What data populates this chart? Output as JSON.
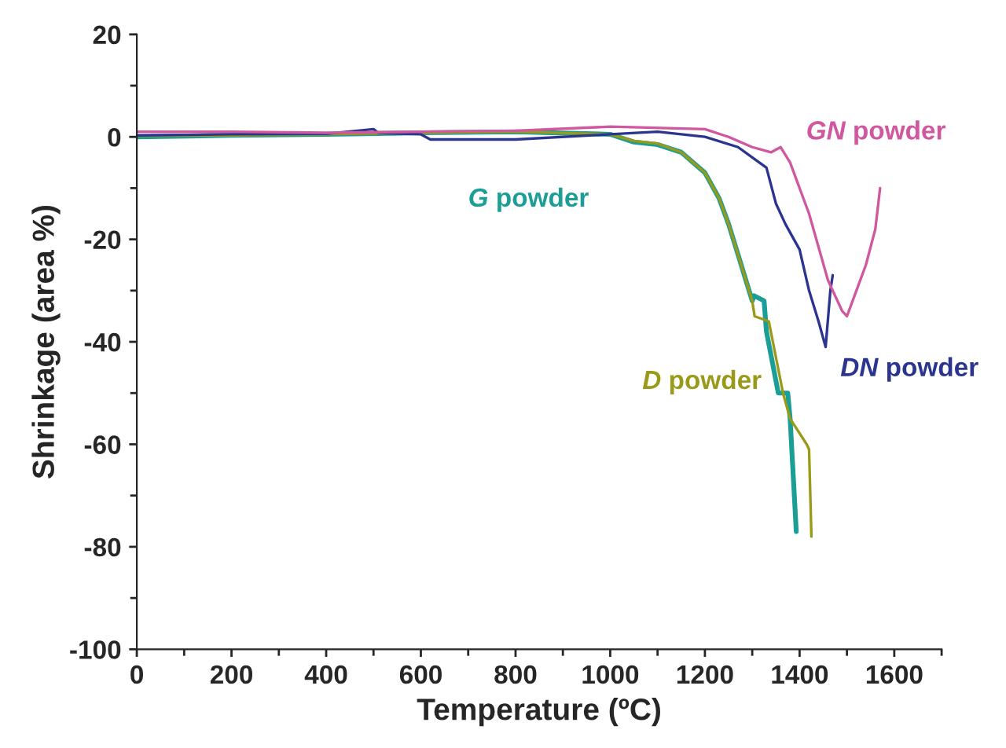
{
  "chart_data": {
    "type": "line",
    "xlabel": "Temperature (ºC)",
    "ylabel": "Shrinkage (area %)",
    "xlim": [
      0,
      1700
    ],
    "xticks": [
      0,
      200,
      400,
      600,
      800,
      1000,
      1200,
      1400,
      1600
    ],
    "ylim": [
      -100,
      20
    ],
    "yticks": [
      -100,
      -80,
      -60,
      -40,
      -20,
      0,
      20
    ],
    "grid": false,
    "legend": false,
    "marker": "none",
    "line_style": "solid",
    "series": [
      {
        "name": "G powder",
        "color": "#1a9e96",
        "x": [
          0,
          200,
          400,
          600,
          800,
          1000,
          1050,
          1100,
          1150,
          1200,
          1230,
          1250,
          1270,
          1290,
          1300,
          1304,
          1325,
          1330,
          1355,
          1375,
          1380,
          1393
        ],
        "values": [
          0,
          0.3,
          0.5,
          0.8,
          1,
          0.5,
          -1,
          -1.5,
          -3,
          -7,
          -12,
          -17,
          -23,
          -29,
          -32,
          -31,
          -32,
          -38,
          -50,
          -50,
          -55,
          -77
        ]
      },
      {
        "name": "D powder",
        "color": "#9a9a1a",
        "x": [
          0,
          200,
          400,
          600,
          800,
          1000,
          1050,
          1100,
          1150,
          1200,
          1230,
          1250,
          1270,
          1290,
          1300,
          1305,
          1335,
          1365,
          1380,
          1415,
          1420,
          1425
        ],
        "values": [
          0.2,
          0.3,
          0.5,
          0.8,
          1,
          0.5,
          -0.8,
          -1.3,
          -3,
          -7,
          -12,
          -17,
          -23,
          -29,
          -32,
          -35,
          -36,
          -50,
          -55,
          -60,
          -61,
          -78
        ]
      },
      {
        "name": "DN powder",
        "color": "#2b3590",
        "x": [
          0,
          200,
          400,
          500,
          510,
          600,
          620,
          800,
          1000,
          1100,
          1200,
          1270,
          1300,
          1330,
          1350,
          1370,
          1400,
          1420,
          1440,
          1455,
          1465,
          1470
        ],
        "values": [
          0.3,
          0.5,
          0.6,
          1.5,
          0.8,
          0.5,
          -0.5,
          -0.5,
          0.5,
          1,
          0,
          -2,
          -4,
          -6,
          -13,
          -17,
          -22,
          -30,
          -36,
          -41,
          -30,
          -27
        ]
      },
      {
        "name": "GN powder",
        "color": "#d0589f",
        "x": [
          0,
          200,
          400,
          600,
          800,
          1000,
          1200,
          1250,
          1300,
          1340,
          1360,
          1380,
          1420,
          1460,
          1490,
          1500,
          1520,
          1540,
          1560,
          1570
        ],
        "values": [
          1,
          1,
          0.8,
          1,
          1.2,
          2,
          1.5,
          0,
          -2,
          -3,
          -2,
          -5,
          -15,
          -28,
          -34,
          -35,
          -30,
          -25,
          -18,
          -10
        ]
      }
    ]
  }
}
